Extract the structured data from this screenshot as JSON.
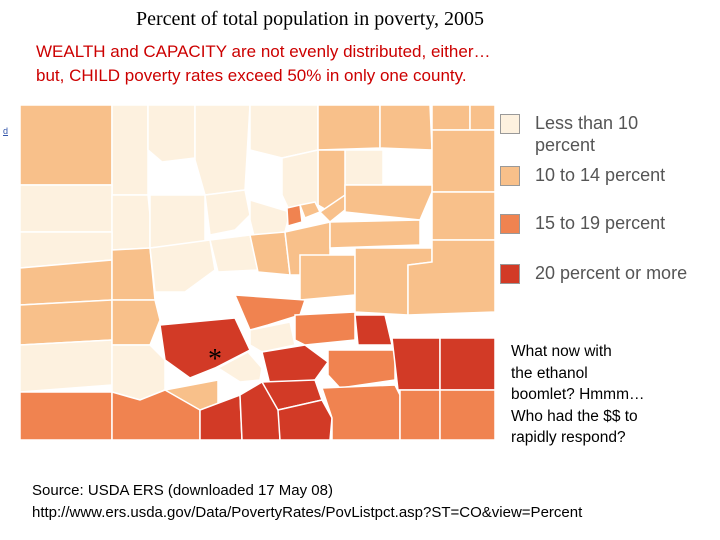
{
  "title": "Percent of total population in poverty, 2005",
  "subtitle": {
    "line1": "WEALTH and CAPACITY are not evenly distributed, either…",
    "line2": "but, CHILD poverty rates exceed 50% in only one county."
  },
  "tiny_link": "d",
  "map_marker": "*",
  "legend": [
    {
      "label": "Less than 10 percent",
      "color": "#fdf1df"
    },
    {
      "label": "10 to 14 percent",
      "color": "#f8c08a"
    },
    {
      "label": "15 to 19 percent",
      "color": "#f08350"
    },
    {
      "label": "20 percent or more",
      "color": "#d23a26"
    }
  ],
  "note": {
    "line1": "What now with",
    "line2": "the ethanol",
    "line3": "boomlet?  Hmmm…",
    "line4": "Who had the $$ to",
    "line5": "rapidly respond?"
  },
  "source": {
    "line1": "Source:  USDA ERS (downloaded 17 May 08)",
    "line2": "http://www.ers.usda.gov/Data/PovertyRates/PovListpct.asp?ST=CO&view=Percent"
  },
  "colors": {
    "border": "#ffffff",
    "title": "#000000",
    "subtitle": "#cc0000"
  }
}
